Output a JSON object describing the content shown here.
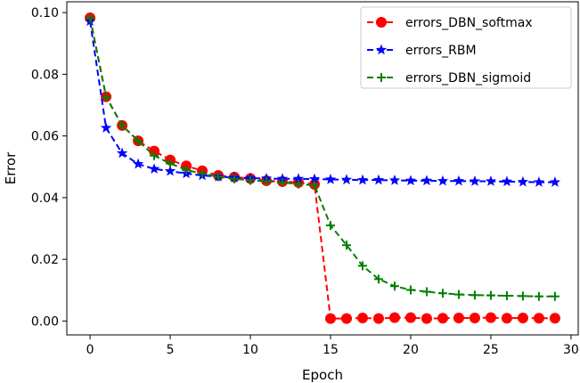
{
  "chart_data": {
    "type": "line",
    "title": "",
    "xlabel": "Epoch",
    "ylabel": "Error",
    "xlim": [
      -1.45,
      30.45
    ],
    "ylim": [
      -0.0045,
      0.1035
    ],
    "x_ticks": [
      0,
      5,
      10,
      15,
      20,
      25,
      30
    ],
    "y_ticks": [
      0.0,
      0.02,
      0.04,
      0.06,
      0.08,
      0.1
    ],
    "x_tick_labels": [
      "0",
      "5",
      "10",
      "15",
      "20",
      "25",
      "30"
    ],
    "y_tick_labels": [
      "0.00",
      "0.02",
      "0.04",
      "0.06",
      "0.08",
      "0.10"
    ],
    "grid": false,
    "legend_position": "top-right",
    "x": [
      0,
      1,
      2,
      3,
      4,
      5,
      6,
      7,
      8,
      9,
      10,
      11,
      12,
      13,
      14,
      15,
      16,
      17,
      18,
      19,
      20,
      21,
      22,
      23,
      24,
      25,
      26,
      27,
      28,
      29
    ],
    "series": [
      {
        "name": "errors_DBN_softmax",
        "color": "#ff0000",
        "marker": "circle",
        "values": [
          0.0983,
          0.0727,
          0.0634,
          0.0584,
          0.0551,
          0.0522,
          0.0503,
          0.0487,
          0.0472,
          0.0467,
          0.0462,
          0.0455,
          0.0452,
          0.0449,
          0.0443,
          0.0008,
          0.0008,
          0.001,
          0.0008,
          0.0011,
          0.0011,
          0.0008,
          0.0009,
          0.001,
          0.001,
          0.0011,
          0.0009,
          0.001,
          0.0009,
          0.0009
        ]
      },
      {
        "name": "errors_RBM",
        "color": "#0000ff",
        "marker": "star",
        "values": [
          0.0972,
          0.0626,
          0.0544,
          0.0509,
          0.0493,
          0.0486,
          0.0478,
          0.0472,
          0.0468,
          0.0465,
          0.0463,
          0.0462,
          0.0461,
          0.0461,
          0.046,
          0.0459,
          0.0458,
          0.0457,
          0.0457,
          0.0456,
          0.0455,
          0.0455,
          0.0454,
          0.0454,
          0.0453,
          0.0453,
          0.0452,
          0.0451,
          0.045,
          0.045
        ]
      },
      {
        "name": "errors_DBN_sigmoid",
        "color": "#008000",
        "marker": "plus",
        "values": [
          0.0983,
          0.0727,
          0.0634,
          0.0584,
          0.0536,
          0.0511,
          0.049,
          0.0478,
          0.0468,
          0.0461,
          0.0456,
          0.0453,
          0.0449,
          0.0444,
          0.044,
          0.031,
          0.0246,
          0.0179,
          0.0136,
          0.0113,
          0.0101,
          0.0095,
          0.009,
          0.0086,
          0.0084,
          0.0083,
          0.0082,
          0.0081,
          0.008,
          0.008
        ]
      }
    ]
  }
}
